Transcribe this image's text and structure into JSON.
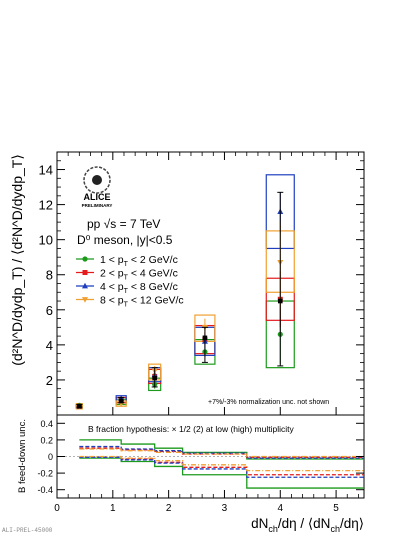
{
  "chart_data": [
    {
      "type": "scatter",
      "panel": "top",
      "ylabel": "(d²N^D/dydp_T) / ⟨d²N^D/dydp_T⟩",
      "ylim": [
        0,
        15
      ],
      "yticks": [
        "2",
        "4",
        "6",
        "8",
        "10",
        "12",
        "14"
      ],
      "legend_placement": "middle-left",
      "logo": {
        "line1": "ALICE",
        "line2": "PRELIMINARY"
      },
      "annotations": {
        "energy": "pp √s = 7 TeV",
        "meson": "D⁰ meson, |y|<0.5",
        "norm_note": "+7%/-3% normalization unc. not shown"
      },
      "x": [
        0.4,
        1.15,
        1.75,
        2.65,
        4.0
      ],
      "series": [
        {
          "name": "1 < p_T < 2 GeV/c",
          "legend": "1 < p",
          "sub": "T",
          "rest": " < 2 GeV/c",
          "color": "#1c9a1c",
          "marker": "circle",
          "values": [
            0.55,
            0.75,
            1.75,
            3.6,
            4.6
          ],
          "box_low": [
            0.45,
            0.6,
            1.4,
            2.9,
            2.7
          ],
          "box_high": [
            0.6,
            0.9,
            2.1,
            4.3,
            6.5
          ],
          "err_low": [
            0.5,
            0.6,
            1.5,
            3.3,
            2.9
          ],
          "err_high": [
            0.6,
            0.9,
            2.0,
            3.9,
            6.3
          ]
        },
        {
          "name": "2 < p_T < 4 GeV/c",
          "legend": "2 < p",
          "sub": "T",
          "rest": " < 4 GeV/c",
          "color": "#e41a1c",
          "marker": "square",
          "values": [
            0.5,
            0.85,
            2.2,
            4.3,
            6.6
          ],
          "box_low": [
            0.4,
            0.7,
            1.8,
            3.5,
            5.4
          ],
          "box_high": [
            0.6,
            1.0,
            2.6,
            5.1,
            7.8
          ],
          "err_low": [
            0.45,
            0.75,
            2.0,
            3.9,
            5.0
          ],
          "err_high": [
            0.55,
            0.95,
            2.4,
            4.7,
            8.2
          ]
        },
        {
          "name": "4 < p_T < 8 GeV/c",
          "legend": "4 < p",
          "sub": "T",
          "rest": " < 8 GeV/c",
          "color": "#1f3fbf",
          "marker": "triangle",
          "values": [
            0.5,
            0.95,
            2.3,
            4.2,
            11.6
          ],
          "box_low": [
            0.4,
            0.8,
            1.9,
            3.4,
            9.5
          ],
          "box_high": [
            0.6,
            1.1,
            2.7,
            5.0,
            13.7
          ],
          "err_low": [
            0.45,
            0.85,
            2.1,
            3.8,
            10.4
          ],
          "err_high": [
            0.55,
            1.05,
            2.5,
            4.6,
            12.7
          ]
        },
        {
          "name": "8 < p_T < 12 GeV/c",
          "legend": "8 < p",
          "sub": "T",
          "rest": " < 12 GeV/c",
          "color": "#f0a030",
          "marker": "triangle-down",
          "values": [
            0.5,
            0.65,
            2.5,
            5.0,
            8.7
          ],
          "box_low": [
            0.35,
            0.5,
            2.0,
            4.2,
            7.0
          ],
          "box_high": [
            0.65,
            0.8,
            2.9,
            5.7,
            10.5
          ],
          "err_low": [
            0.4,
            0.55,
            2.2,
            4.5,
            6.0
          ],
          "err_high": [
            0.6,
            0.75,
            2.8,
            5.5,
            11.0
          ]
        }
      ],
      "black_points": {
        "values": [
          0.5,
          0.8,
          2.1,
          4.4,
          6.5
        ],
        "err_low": [
          0.45,
          0.7,
          1.6,
          3.0,
          2.8
        ],
        "err_high": [
          0.6,
          1.0,
          2.7,
          5.0,
          12.7
        ]
      }
    },
    {
      "type": "line",
      "panel": "bottom",
      "ylabel": "B feed-down unc.",
      "ylim": [
        -0.5,
        0.5
      ],
      "xlim": [
        0,
        5.5
      ],
      "yticks": [
        "-0.4",
        "-0.2",
        "0",
        "0.2",
        "0.4"
      ],
      "xticks": [
        "0",
        "1",
        "2",
        "3",
        "4",
        "5"
      ],
      "xlabel_main": "dN",
      "xlabel_sub1": "ch",
      "xlabel_mid": "/dη / ⟨dN",
      "xlabel_sub2": "ch",
      "xlabel_end": "/dη⟩",
      "annotation": "B fraction hypothesis: × 1/2 (2) at low (high) multiplicity",
      "bin_edges": [
        0.4,
        1.15,
        1.75,
        2.25,
        3.4,
        5.5
      ],
      "series": [
        {
          "color": "#1c9a1c",
          "style": "solid",
          "upper": [
            0.2,
            0.15,
            0.1,
            0.05,
            -0.03
          ],
          "lower": [
            -0.02,
            -0.06,
            -0.12,
            -0.22,
            -0.38
          ]
        },
        {
          "color": "#e41a1c",
          "style": "dashed",
          "upper": [
            0.1,
            0.08,
            0.06,
            0.03,
            -0.01
          ],
          "lower": [
            -0.01,
            -0.03,
            -0.07,
            -0.13,
            -0.22
          ]
        },
        {
          "color": "#1f3fbf",
          "style": "dashed",
          "upper": [
            0.12,
            0.09,
            0.07,
            0.04,
            -0.02
          ],
          "lower": [
            -0.01,
            -0.04,
            -0.08,
            -0.15,
            -0.25
          ]
        },
        {
          "color": "#f0a030",
          "style": "dashdot",
          "upper": [
            0.09,
            0.07,
            0.05,
            0.03,
            0.0
          ],
          "lower": [
            0.0,
            -0.02,
            -0.05,
            -0.1,
            -0.17
          ]
        }
      ]
    }
  ],
  "footer": {
    "label": "ALI-PREL-45000"
  }
}
